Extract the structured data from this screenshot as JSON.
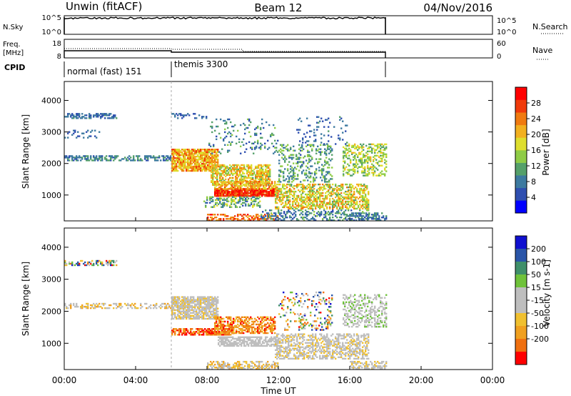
{
  "header": {
    "station": "Unwin (fitACF)",
    "beam": "Beam 12",
    "date": "04/Nov/2016"
  },
  "panels": {
    "nsky": {
      "left_label": "N.Sky",
      "right_label": "N.Search",
      "left_ticks": [
        "10^5",
        "10^0"
      ],
      "right_ticks": [
        "10^5",
        "10^0"
      ]
    },
    "freq": {
      "left_label_line1": "Freq.",
      "left_label_line2": "[MHz]",
      "right_label": "Nave",
      "left_ticks": [
        "18",
        "8"
      ],
      "right_ticks": [
        "60",
        "0"
      ]
    },
    "cpid": {
      "label": "CPID",
      "segments": [
        {
          "name": "normal (fast) 151",
          "start_h": 0,
          "end_h": 6
        },
        {
          "name": "themis 3300",
          "start_h": 6,
          "end_h": 18
        }
      ]
    }
  },
  "colors": {
    "power_scale": [
      "#0000ff",
      "#2f4fb0",
      "#3d7aa0",
      "#55a06a",
      "#8fcc46",
      "#dede2e",
      "#f2b020",
      "#f07a10",
      "#f03a0a",
      "#ff0000"
    ],
    "velocity_scale": [
      "#1010d0",
      "#2a55a8",
      "#3f8f6a",
      "#6fc23a",
      "#bebebe",
      "#bebebe",
      "#f0c030",
      "#f0a020",
      "#f07010",
      "#ff0000"
    ]
  },
  "chart_data": [
    {
      "type": "heatmap",
      "name": "power",
      "xlabel": "Time UT",
      "ylabel": "Slant Range [km]",
      "colorbar_label": "Power [dB]",
      "colorbar_ticks": [
        4,
        8,
        12,
        16,
        20,
        24,
        28
      ],
      "colorbar_range": [
        0,
        32
      ],
      "x_ticks": [
        "00:00",
        "04:00",
        "08:00",
        "12:00",
        "16:00",
        "20:00",
        "00:00"
      ],
      "x_range_hours": [
        0,
        24
      ],
      "y_ticks": [
        1000,
        2000,
        3000,
        4000
      ],
      "y_range": [
        180,
        4600
      ],
      "regions": [
        {
          "t0": 0.0,
          "t1": 2.9,
          "r0": 3420,
          "r1": 3560,
          "level": [
            4,
            10
          ],
          "density": 0.55
        },
        {
          "t0": 6.0,
          "t1": 8.0,
          "r0": 3420,
          "r1": 3560,
          "level": [
            4,
            9
          ],
          "density": 0.35
        },
        {
          "t0": 0.0,
          "t1": 6.0,
          "r0": 2080,
          "r1": 2260,
          "level": [
            5,
            12
          ],
          "density": 0.5
        },
        {
          "t0": 0.0,
          "t1": 2.0,
          "r0": 2800,
          "r1": 3050,
          "level": [
            4,
            9
          ],
          "density": 0.2
        },
        {
          "t0": 6.0,
          "t1": 8.6,
          "r0": 1750,
          "r1": 2450,
          "level": [
            16,
            27
          ],
          "density": 0.85
        },
        {
          "t0": 8.2,
          "t1": 11.5,
          "r0": 1300,
          "r1": 1950,
          "level": [
            12,
            24
          ],
          "density": 0.65
        },
        {
          "t0": 8.4,
          "t1": 12.0,
          "r0": 950,
          "r1": 1180,
          "level": [
            24,
            32
          ],
          "density": 0.95
        },
        {
          "t0": 8.4,
          "t1": 12.0,
          "r0": 1180,
          "r1": 1450,
          "level": [
            16,
            26
          ],
          "density": 0.6
        },
        {
          "t0": 7.8,
          "t1": 11.0,
          "r0": 600,
          "r1": 950,
          "level": [
            6,
            18
          ],
          "density": 0.4
        },
        {
          "t0": 8.0,
          "t1": 12.0,
          "r0": 180,
          "r1": 380,
          "level": [
            20,
            30
          ],
          "density": 0.5
        },
        {
          "t0": 11.8,
          "t1": 17.0,
          "r0": 550,
          "r1": 1350,
          "level": [
            12,
            24
          ],
          "density": 0.55
        },
        {
          "t0": 11.0,
          "t1": 17.0,
          "r0": 180,
          "r1": 500,
          "level": [
            4,
            14
          ],
          "density": 0.35
        },
        {
          "t0": 8.0,
          "t1": 12.0,
          "r0": 2300,
          "r1": 3400,
          "level": [
            4,
            14
          ],
          "density": 0.12
        },
        {
          "t0": 12.0,
          "t1": 15.0,
          "r0": 1400,
          "r1": 2600,
          "level": [
            6,
            16
          ],
          "density": 0.28
        },
        {
          "t0": 15.6,
          "t1": 18.0,
          "r0": 1600,
          "r1": 2600,
          "level": [
            10,
            20
          ],
          "density": 0.4
        },
        {
          "t0": 13.0,
          "t1": 16.0,
          "r0": 2600,
          "r1": 3500,
          "level": [
            4,
            10
          ],
          "density": 0.1
        },
        {
          "t0": 16.0,
          "t1": 18.0,
          "r0": 180,
          "r1": 420,
          "level": [
            4,
            12
          ],
          "density": 0.5
        }
      ]
    },
    {
      "type": "heatmap",
      "name": "velocity",
      "xlabel": "Time UT",
      "ylabel": "Slant Range [km]",
      "colorbar_label": "Velocity [m s-1]",
      "colorbar_ticks": [
        200,
        100,
        50,
        15,
        -15,
        -50,
        -100,
        -200
      ],
      "x_ticks": [
        "00:00",
        "04:00",
        "08:00",
        "12:00",
        "16:00",
        "20:00",
        "00:00"
      ],
      "x_range_hours": [
        0,
        24
      ],
      "y_ticks": [
        1000,
        2000,
        3000,
        4000
      ],
      "y_range": [
        180,
        4600
      ],
      "regions": [
        {
          "t0": 0.0,
          "t1": 2.9,
          "r0": 3420,
          "r1": 3560,
          "level": [
            0,
            9
          ],
          "density": 0.5
        },
        {
          "t0": 0.0,
          "t1": 6.0,
          "r0": 2080,
          "r1": 2260,
          "level": [
            4,
            7
          ],
          "density": 0.45
        },
        {
          "t0": 6.0,
          "t1": 8.6,
          "r0": 1750,
          "r1": 2450,
          "level": [
            4,
            6
          ],
          "density": 0.8
        },
        {
          "t0": 6.0,
          "t1": 9.5,
          "r0": 1250,
          "r1": 1450,
          "level": [
            7,
            9
          ],
          "density": 0.75
        },
        {
          "t0": 8.4,
          "t1": 11.8,
          "r0": 1300,
          "r1": 1800,
          "level": [
            6,
            9
          ],
          "density": 0.6
        },
        {
          "t0": 8.6,
          "t1": 12.0,
          "r0": 900,
          "r1": 1200,
          "level": [
            4,
            5
          ],
          "density": 0.7
        },
        {
          "t0": 8.0,
          "t1": 12.0,
          "r0": 180,
          "r1": 420,
          "level": [
            4,
            7
          ],
          "density": 0.5
        },
        {
          "t0": 11.8,
          "t1": 17.0,
          "r0": 500,
          "r1": 1300,
          "level": [
            4,
            6
          ],
          "density": 0.5
        },
        {
          "t0": 12.0,
          "t1": 15.0,
          "r0": 1400,
          "r1": 2600,
          "level": [
            0,
            9
          ],
          "density": 0.2
        },
        {
          "t0": 15.6,
          "t1": 18.0,
          "r0": 1500,
          "r1": 2500,
          "level": [
            3,
            5
          ],
          "density": 0.4
        },
        {
          "t0": 16.0,
          "t1": 18.0,
          "r0": 180,
          "r1": 420,
          "level": [
            4,
            6
          ],
          "density": 0.5
        }
      ]
    }
  ]
}
